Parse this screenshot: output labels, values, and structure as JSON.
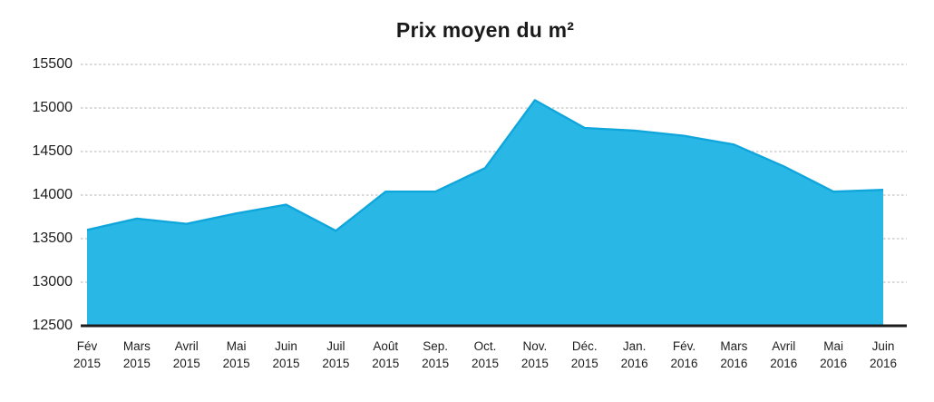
{
  "chart_data": {
    "type": "area",
    "title": "Prix moyen du m²",
    "categories": [
      {
        "month": "Fév",
        "year": "2015"
      },
      {
        "month": "Mars",
        "year": "2015"
      },
      {
        "month": "Avril",
        "year": "2015"
      },
      {
        "month": "Mai",
        "year": "2015"
      },
      {
        "month": "Juin",
        "year": "2015"
      },
      {
        "month": "Juil",
        "year": "2015"
      },
      {
        "month": "Août",
        "year": "2015"
      },
      {
        "month": "Sep.",
        "year": "2015"
      },
      {
        "month": "Oct.",
        "year": "2015"
      },
      {
        "month": "Nov.",
        "year": "2015"
      },
      {
        "month": "Déc.",
        "year": "2015"
      },
      {
        "month": "Jan.",
        "year": "2016"
      },
      {
        "month": "Fév.",
        "year": "2016"
      },
      {
        "month": "Mars",
        "year": "2016"
      },
      {
        "month": "Avril",
        "year": "2016"
      },
      {
        "month": "Mai",
        "year": "2016"
      },
      {
        "month": "Juin",
        "year": "2016"
      }
    ],
    "values": [
      13600,
      13730,
      13670,
      13790,
      13890,
      13590,
      14040,
      14040,
      14310,
      15090,
      14770,
      14740,
      14680,
      14580,
      14330,
      14040,
      14060
    ],
    "ylim": [
      12500,
      15500
    ],
    "yticks": [
      15500,
      15000,
      14500,
      14000,
      13500,
      13000,
      12500
    ],
    "ytick_step": 500,
    "xlabel": "",
    "ylabel": "",
    "grid": "horizontal-dashed",
    "legend": "none",
    "colors": {
      "fill": "#29B8E6",
      "stroke": "#10A6DC",
      "grid": "#B3B3B3",
      "axis": "#1D1D1D",
      "text": "#1D1D1D",
      "title": "#1A1A1A"
    }
  }
}
